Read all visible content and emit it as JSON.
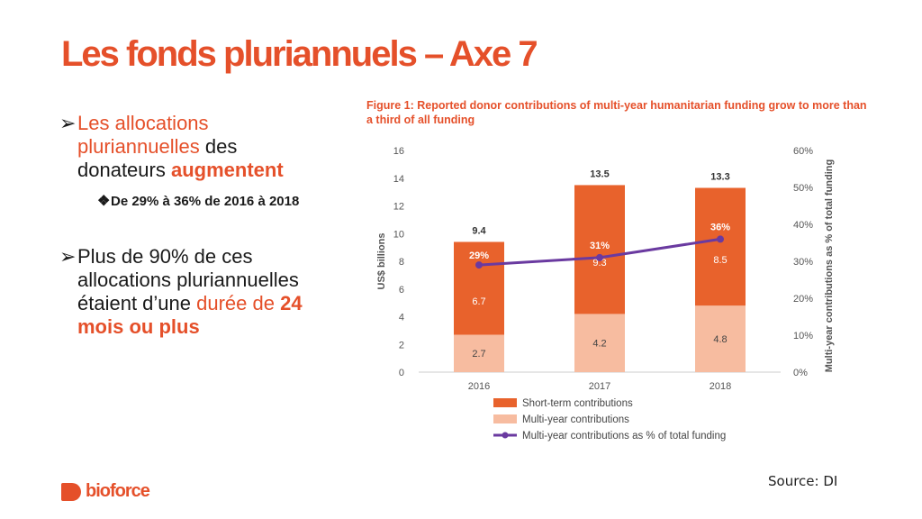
{
  "slide": {
    "title": "Les fonds pluriannuels – Axe 7",
    "source": "Source: DI",
    "brand": "bioforce"
  },
  "bullets": {
    "b1_arrow": "➢",
    "b1_part1": "Les allocations",
    "b1_part2": "pluriannuelles",
    "b1_part3": " des",
    "b1_part4": "donateurs ",
    "b1_part5": "augmentent",
    "sub_diamond": "❖",
    "sub_text": "De 29% à 36% de 2016 à 2018",
    "b2_arrow": "➢",
    "b2_part1": " Plus de 90% de ces",
    "b2_part2": "allocations pluriannuelles",
    "b2_part3": "étaient d’une ",
    "b2_part4": "durée de ",
    "b2_part5": "24",
    "b2_part6": "mois ou plus"
  },
  "colors": {
    "short_term": "#e8622c",
    "multi_year": "#f7bca0",
    "line": "#6a3aa0",
    "accent": "#e5502a"
  },
  "chart_data": {
    "type": "bar",
    "title": "Figure 1: Reported donor contributions of multi-year humanitarian funding grow to more than a third of all funding",
    "categories": [
      "2016",
      "2017",
      "2018"
    ],
    "series": [
      {
        "name": "Multi-year contributions",
        "values": [
          2.7,
          4.2,
          4.8
        ]
      },
      {
        "name": "Short-term contributions",
        "values": [
          6.7,
          9.3,
          8.5
        ]
      }
    ],
    "totals": [
      9.4,
      13.5,
      13.3
    ],
    "line_series": {
      "name": "Multi-year contributions as % of total funding",
      "values": [
        29,
        31,
        36
      ],
      "labels": [
        "29%",
        "31%",
        "36%"
      ]
    },
    "ylabel": "US$ billions",
    "y2label": "Multi-year contributions as % of total funding",
    "ylim": [
      0,
      16
    ],
    "yticks": [
      "0",
      "2",
      "4",
      "6",
      "8",
      "10",
      "12",
      "14",
      "16"
    ],
    "y2lim": [
      0,
      60
    ],
    "y2ticks": [
      "0%",
      "10%",
      "20%",
      "30%",
      "40%",
      "50%",
      "60%"
    ],
    "legend": [
      "Short-term contributions",
      "Multi-year contributions",
      "Multi-year contributions as % of total funding"
    ],
    "legend_position": "bottom",
    "grid": false
  }
}
